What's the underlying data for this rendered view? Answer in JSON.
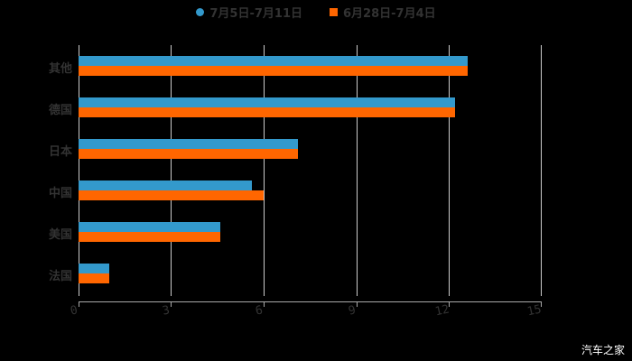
{
  "chart_data": {
    "type": "bar",
    "orientation": "horizontal",
    "title": "",
    "categories": [
      "其他",
      "德国",
      "日本",
      "中国",
      "美国",
      "法国"
    ],
    "series": [
      {
        "name": "7月5日-7月11日",
        "color": "#3399cc",
        "values": [
          12.6,
          12.2,
          7.1,
          5.6,
          4.6,
          1.0
        ]
      },
      {
        "name": "6月28日-7月4日",
        "color": "#ff6600",
        "values": [
          12.6,
          12.2,
          7.1,
          6.0,
          4.6,
          1.0
        ]
      }
    ],
    "xlim": [
      0,
      15
    ],
    "xticks": [
      "0",
      "3",
      "6",
      "9",
      "12",
      "15"
    ],
    "grid": true,
    "legend_position": "top"
  },
  "legend": {
    "series0": "7月5日-7月11日",
    "series1": "6月28日-7月4日"
  },
  "watermark": "汽车之家"
}
